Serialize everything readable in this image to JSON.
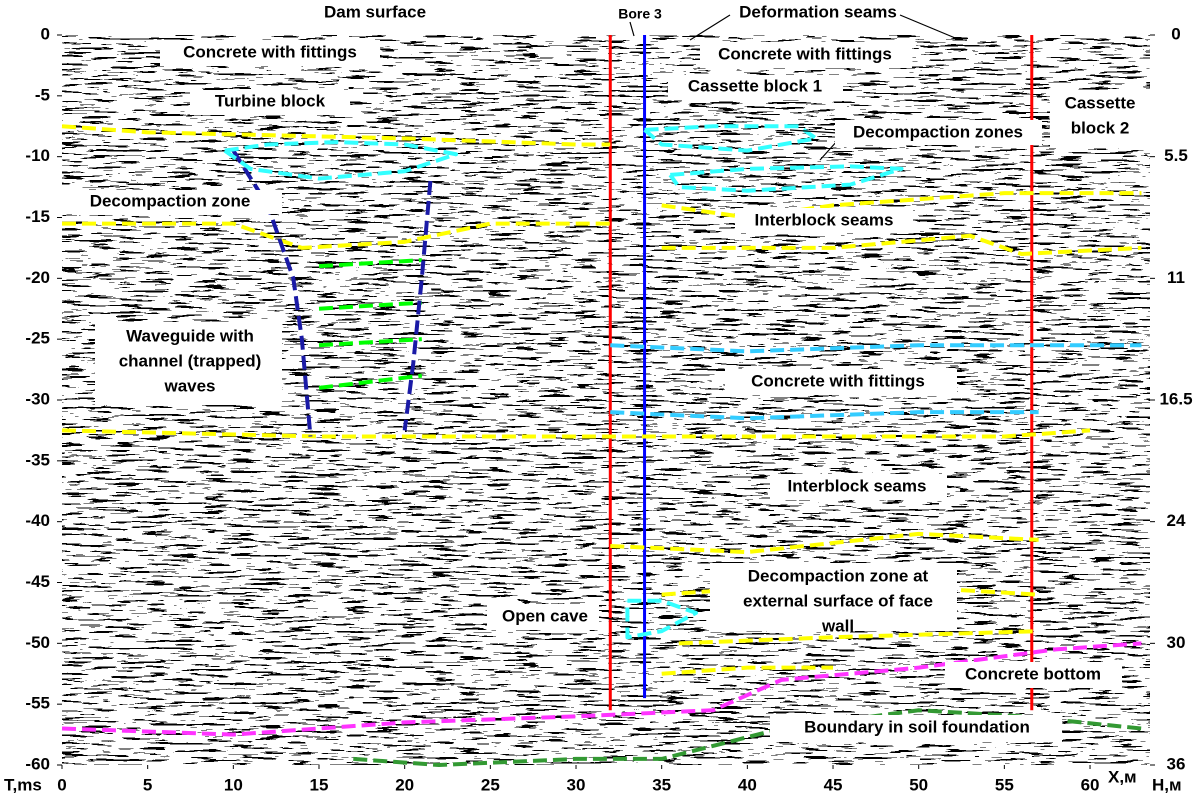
{
  "chart_data": {
    "type": "section",
    "title": "Dam surface",
    "xlabel": "X,м",
    "ylabel": "T,ms",
    "y2label": "H,м",
    "xlim": [
      0,
      63.5
    ],
    "ylim": [
      -60,
      0
    ],
    "xticks": [
      0,
      5,
      10,
      15,
      20,
      25,
      30,
      35,
      40,
      45,
      50,
      55,
      60
    ],
    "yticks": [
      0,
      -5,
      -10,
      -15,
      -20,
      -25,
      -30,
      -35,
      -40,
      -45,
      -50,
      -55,
      -60
    ],
    "depth_ticks": [
      {
        "t": 0,
        "h": 0
      },
      {
        "t": -10,
        "h": 5.5
      },
      {
        "t": -20,
        "h": 11
      },
      {
        "t": -30,
        "h": 16.5
      },
      {
        "t": -40,
        "h": 24
      },
      {
        "t": -50,
        "h": 30
      },
      {
        "t": -60,
        "h": 36
      }
    ],
    "lines": [
      {
        "color": "#ff0000",
        "dash": false,
        "x": [
          32,
          32
        ],
        "y": [
          0,
          -55.5
        ]
      },
      {
        "color": "#ff0000",
        "dash": false,
        "x": [
          56.6,
          56.6
        ],
        "y": [
          0,
          -55.5
        ]
      },
      {
        "color": "#0000ff",
        "dash": false,
        "x": [
          34,
          34
        ],
        "y": [
          0,
          -54.5
        ]
      },
      {
        "color": "#ffff00",
        "dash": true,
        "x": [
          0,
          5,
          20,
          30,
          32
        ],
        "y": [
          -7.5,
          -8,
          -8.5,
          -9,
          -9
        ]
      },
      {
        "color": "#ffff00",
        "dash": true,
        "x": [
          35,
          40,
          45,
          55,
          63
        ],
        "y": [
          -14,
          -15,
          -14,
          -13,
          -13
        ]
      },
      {
        "color": "#ffff00",
        "dash": true,
        "x": [
          0,
          10,
          14,
          20,
          25,
          32
        ],
        "y": [
          -15.5,
          -15.5,
          -17.5,
          -17,
          -15.5,
          -15.5
        ]
      },
      {
        "color": "#ffff00",
        "dash": true,
        "x": [
          35,
          45,
          53,
          56,
          63
        ],
        "y": [
          -17.5,
          -17.5,
          -16.5,
          -18,
          -17.5
        ]
      },
      {
        "color": "#ffff00",
        "dash": true,
        "x": [
          0,
          15,
          30,
          40,
          55,
          60
        ],
        "y": [
          -32.5,
          -33,
          -33,
          -33,
          -33,
          -32.5
        ]
      },
      {
        "color": "#ffff00",
        "dash": true,
        "x": [
          32,
          40,
          50,
          57
        ],
        "y": [
          -42,
          -42.5,
          -41,
          -41.5
        ]
      },
      {
        "color": "#ffff00",
        "dash": true,
        "x": [
          35,
          45,
          57
        ],
        "y": [
          -46,
          -45,
          -46
        ]
      },
      {
        "color": "#ffff00",
        "dash": true,
        "x": [
          36,
          45,
          57
        ],
        "y": [
          -50,
          -49.5,
          -49
        ]
      },
      {
        "color": "#ffff00",
        "dash": true,
        "x": [
          35,
          40,
          45
        ],
        "y": [
          -52.5,
          -52,
          -52
        ]
      },
      {
        "color": "#33ccff",
        "dash": true,
        "x": [
          32,
          40,
          50,
          63
        ],
        "y": [
          -25.5,
          -26,
          -25.5,
          -25.5
        ]
      },
      {
        "color": "#33ccff",
        "dash": true,
        "x": [
          32,
          40,
          50,
          57
        ],
        "y": [
          -31,
          -31.5,
          -31,
          -31
        ]
      },
      {
        "color": "#00ff00",
        "dash": true,
        "x": [
          15,
          21
        ],
        "y": [
          -19,
          -18.5
        ]
      },
      {
        "color": "#00ff00",
        "dash": true,
        "x": [
          15,
          21
        ],
        "y": [
          -22.5,
          -22
        ]
      },
      {
        "color": "#00ff00",
        "dash": true,
        "x": [
          15,
          21
        ],
        "y": [
          -25.5,
          -25
        ]
      },
      {
        "color": "#00ff00",
        "dash": true,
        "x": [
          15,
          21
        ],
        "y": [
          -29,
          -28
        ]
      },
      {
        "color": "#ff33ff",
        "dash": true,
        "x": [
          0,
          10,
          20,
          30,
          38,
          42,
          50,
          58,
          63
        ],
        "y": [
          -57,
          -57.5,
          -56.5,
          -56,
          -55.5,
          -53,
          -52,
          -50.5,
          -50
        ]
      },
      {
        "color": "#339933",
        "dash": true,
        "x": [
          17,
          22,
          30,
          35,
          42,
          50,
          56,
          63
        ],
        "y": [
          -59.5,
          -60,
          -59.5,
          -59.5,
          -57,
          -55.5,
          -56,
          -57
        ]
      },
      {
        "color": "#1a1aa6",
        "dash": true,
        "x": [
          10,
          12,
          13.5,
          14,
          14.5
        ],
        "y": [
          -9.5,
          -14,
          -20,
          -25,
          -33
        ]
      },
      {
        "color": "#1a1aa6",
        "dash": true,
        "x": [
          21.5,
          21,
          20.5,
          20
        ],
        "y": [
          -12,
          -20,
          -27,
          -32.5
        ]
      },
      {
        "color": "#33ffff",
        "dash": true,
        "x": [
          9.5,
          12,
          16,
          20,
          23,
          20,
          15,
          11,
          9.5
        ],
        "y": [
          -9.5,
          -9,
          -8.8,
          -9,
          -9.8,
          -11.2,
          -11.8,
          -11,
          -9.5
        ]
      },
      {
        "color": "#33ffff",
        "dash": true,
        "x": [
          34,
          38,
          43,
          44,
          40,
          35,
          34
        ],
        "y": [
          -7.8,
          -7.5,
          -7.5,
          -8.5,
          -9.5,
          -9,
          -7.8
        ]
      },
      {
        "color": "#33ffff",
        "dash": true,
        "x": [
          35.5,
          40,
          46,
          49,
          46,
          40,
          36,
          35.5
        ],
        "y": [
          -11.5,
          -11,
          -10.8,
          -11,
          -12.3,
          -12.8,
          -12.5,
          -11.5
        ]
      },
      {
        "color": "#33ffff",
        "dash": true,
        "x": [
          33,
          35,
          37,
          35,
          33,
          33
        ],
        "y": [
          -46.5,
          -46.5,
          -47.5,
          -49,
          -49.5,
          -46.5
        ]
      }
    ],
    "annotations": [
      {
        "lines": [
          "Bore 3"
        ]
      },
      {
        "lines": [
          "Deformation seams"
        ]
      },
      {
        "lines": [
          "Concrete with fittings"
        ]
      },
      {
        "lines": [
          "Concrete with fittings"
        ]
      },
      {
        "lines": [
          "Turbine block"
        ]
      },
      {
        "lines": [
          "Cassette block 1"
        ]
      },
      {
        "lines": [
          "Cassette",
          "block 2"
        ]
      },
      {
        "lines": [
          "Decompaction zones"
        ]
      },
      {
        "lines": [
          "Decompaction zone"
        ]
      },
      {
        "lines": [
          "Interblock seams"
        ]
      },
      {
        "lines": [
          "Waveguide with",
          "channel (trapped)",
          "waves"
        ]
      },
      {
        "lines": [
          "Concrete with fittings"
        ]
      },
      {
        "lines": [
          "Interblock seams"
        ]
      },
      {
        "lines": [
          "Decompaction zone at",
          "external surface of face",
          "wall"
        ]
      },
      {
        "lines": [
          "Open cave"
        ]
      },
      {
        "lines": [
          "Concrete bottom"
        ]
      },
      {
        "lines": [
          "Boundary in soil foundation"
        ]
      }
    ]
  }
}
